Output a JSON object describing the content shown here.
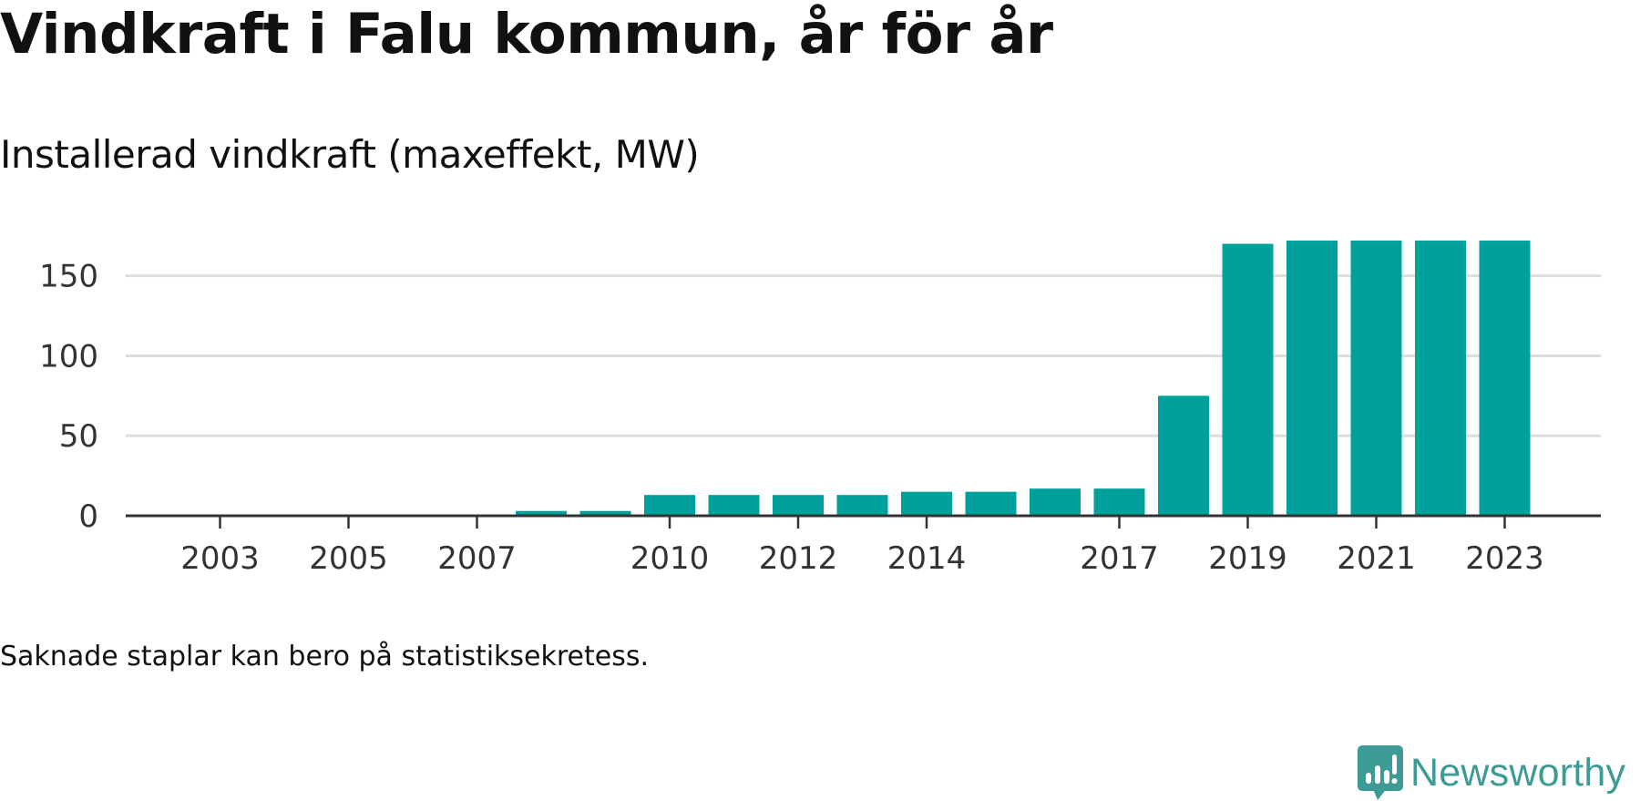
{
  "title": "Vindkraft i Falu kommun, år för år",
  "subtitle": "Installerad vindkraft (maxeffekt, MW)",
  "note": "Saknade staplar kan bero på statistiksekretess.",
  "brand": {
    "name": "Newsworthy",
    "icon": "newsworthy-logo-icon",
    "color": "#3c9b94"
  },
  "colors": {
    "bar": "#00a19a",
    "grid": "#dddddd",
    "axis": "#333333",
    "text": "#111111"
  },
  "chart_data": {
    "type": "bar",
    "title": "Installerad vindkraft (maxeffekt, MW)",
    "xlabel": "",
    "ylabel": "",
    "categories": [
      "2002",
      "2003",
      "2004",
      "2005",
      "2006",
      "2007",
      "2008",
      "2009",
      "2010",
      "2011",
      "2012",
      "2013",
      "2014",
      "2015",
      "2016",
      "2017",
      "2018",
      "2019",
      "2020",
      "2021",
      "2022",
      "2023"
    ],
    "values": [
      0,
      0,
      0,
      0,
      0,
      0,
      3,
      3,
      13,
      13,
      13,
      13,
      15,
      15,
      17,
      17,
      75,
      170,
      172,
      172,
      172,
      172
    ],
    "x_tick_labels": [
      "2003",
      "2005",
      "2007",
      "2010",
      "2012",
      "2014",
      "2017",
      "2019",
      "2021",
      "2023"
    ],
    "y_ticks": [
      0,
      50,
      100,
      150
    ],
    "ylim": [
      0,
      180
    ],
    "grid": true,
    "legend": "none"
  }
}
